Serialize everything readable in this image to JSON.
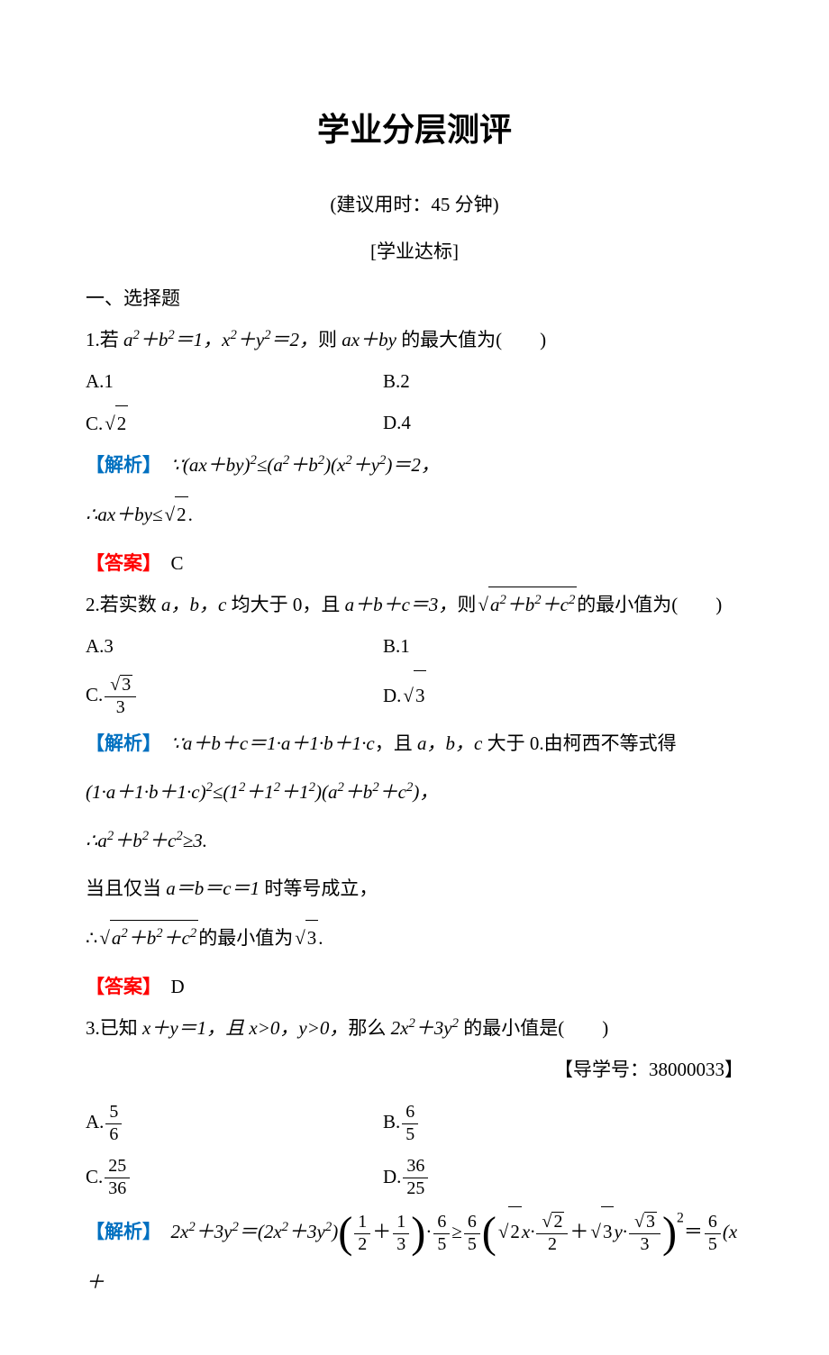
{
  "colors": {
    "text": "#000000",
    "analysis": "#0070c0",
    "answer": "#ff0000",
    "background": "#ffffff"
  },
  "typography": {
    "title_fontsize": 36,
    "body_fontsize": 21,
    "title_font": "SimHei",
    "body_font": "SimSun"
  },
  "title": "学业分层测评",
  "subtitle": "(建议用时：45 分钟)",
  "section_header": "[学业达标]",
  "section1_label": "一、选择题",
  "labels": {
    "analysis": "【解析】",
    "answer": "【答案】"
  },
  "q1": {
    "stem_prefix": "1.若 ",
    "stem_cond1": "a²+b²＝1，x²+y²＝2，",
    "stem_mid": "则 ",
    "stem_target": "ax＋by ",
    "stem_suffix": "的最大值为(　　)",
    "options": {
      "A": {
        "label": "A.",
        "value": "1"
      },
      "B": {
        "label": "B.",
        "value": "2"
      },
      "C": {
        "label": "C.",
        "value_sqrt": "2"
      },
      "D": {
        "label": "D.",
        "value": "4"
      }
    },
    "analysis": {
      "line1_prefix": "∵(ax＋by)²≤(a²＋b²)(x²＋y²)＝2，",
      "line2_prefix": "∴ax＋by≤",
      "line2_sqrt": "2",
      "line2_suffix": "."
    },
    "answer": "C"
  },
  "q2": {
    "stem_prefix": "2.若实数 ",
    "stem_vars": "a，b，c ",
    "stem_mid1": "均大于 0，且 ",
    "stem_cond": "a＋b＋c＝3，",
    "stem_mid2": "则",
    "stem_sqrt_inner": "a²＋b²＋c²",
    "stem_suffix": "的最小值为(　　)",
    "options": {
      "A": {
        "label": "A.",
        "value": "3"
      },
      "B": {
        "label": "B.",
        "value": "1"
      },
      "C": {
        "label": "C.",
        "frac_num_sqrt": "3",
        "frac_den": "3"
      },
      "D": {
        "label": "D.",
        "value_sqrt": "3"
      }
    },
    "analysis": {
      "line1": "∵a＋b＋c＝1·a＋1·b＋1·c，且 a，b，c 大于 0.由柯西不等式得",
      "line2": "(1·a＋1·b＋1·c)²≤(1²＋1²＋1²)(a²＋b²＋c²)，",
      "line3": "∴a²＋b²＋c²≥3.",
      "line4": "当且仅当 a＝b＝c＝1 时等号成立，",
      "line5_prefix": "∴",
      "line5_sqrt_inner": "a²＋b²＋c²",
      "line5_mid": "的最小值为",
      "line5_sqrt2": "3",
      "line5_suffix": "."
    },
    "answer": "D"
  },
  "q3": {
    "stem_prefix": "3.已知 ",
    "stem_cond": "x＋y＝1，且 x>0，y>0，",
    "stem_mid": "那么 ",
    "stem_target": "2x²＋3y² ",
    "stem_suffix": "的最小值是(　　)",
    "guide": "【导学号：38000033】",
    "options": {
      "A": {
        "label": "A.",
        "frac_num": "5",
        "frac_den": "6"
      },
      "B": {
        "label": "B.",
        "frac_num": "6",
        "frac_den": "5"
      },
      "C": {
        "label": "C.",
        "frac_num": "25",
        "frac_den": "36"
      },
      "D": {
        "label": "D.",
        "frac_num": "36",
        "frac_den": "25"
      }
    },
    "analysis": {
      "expr_start": "2x²＋3y²＝(2x²＋3y²)",
      "paren_frac1_num": "1",
      "paren_frac1_den": "2",
      "paren_plus": "＋",
      "paren_frac2_num": "1",
      "paren_frac2_den": "3",
      "after_paren1": "·",
      "frac65a_num": "6",
      "frac65a_den": "5",
      "geq": "≥",
      "frac65b_num": "6",
      "frac65b_den": "5",
      "paren2_t1_sqrt": "2",
      "paren2_t1_var": "x·",
      "paren2_t1_frac_num_sqrt": "2",
      "paren2_t1_frac_den": "2",
      "paren2_plus": "＋",
      "paren2_t2_sqrt": "3",
      "paren2_t2_var": "y·",
      "paren2_t2_frac_num_sqrt": "3",
      "paren2_t2_frac_den": "3",
      "exp2": "2",
      "eq": "＝",
      "frac65c_num": "6",
      "frac65c_den": "5",
      "tail": "(x＋"
    }
  }
}
